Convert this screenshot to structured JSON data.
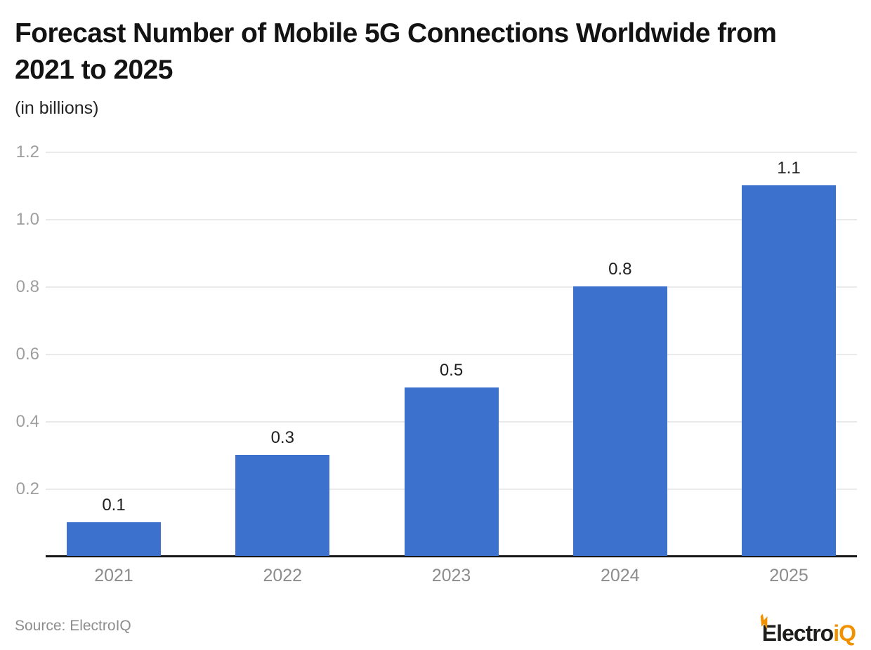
{
  "header": {
    "title_lines": [
      "Forecast Number of Mobile 5G Connections Worldwide from",
      "2021 to 2025"
    ],
    "subtitle": "(in billions)"
  },
  "chart_data": {
    "type": "bar",
    "title": "Forecast Number of Mobile 5G Connections Worldwide from 2021 to 2025",
    "subtitle": "(in billions)",
    "unit": "billions",
    "categories": [
      "2021",
      "2022",
      "2023",
      "2024",
      "2025"
    ],
    "values": [
      0.1,
      0.3,
      0.5,
      0.8,
      1.1
    ],
    "value_labels": [
      "0.1",
      "0.3",
      "0.5",
      "0.8",
      "1.1"
    ],
    "xlabel": "",
    "ylabel": "(in billions)",
    "ylim": [
      0,
      1.2
    ],
    "yticks": [
      0.2,
      0.4,
      0.6,
      0.8,
      1.0,
      1.2
    ],
    "ytick_labels": [
      "0.2",
      "0.4",
      "0.6",
      "0.8",
      "1.0",
      "1.2"
    ],
    "grid": true,
    "legend": false,
    "legend_position": "none",
    "bar_color": "#3C72CE"
  },
  "footer": {
    "source": "Source: ElectroIQ",
    "logo_text_dark": "Electro",
    "logo_text_accent": "iQ"
  },
  "colors": {
    "background": "#FFFFFF",
    "bar": "#3C72CE",
    "gridline": "#E9E9E9",
    "axis_line": "#161616",
    "ytick_label": "#9E9E9E",
    "xtick_label": "#8C8C8C",
    "value_label": "#202020",
    "title": "#131313",
    "source_text": "#8D8D8D",
    "logo_dark": "#1E1E1C",
    "logo_accent": "#F29100"
  }
}
